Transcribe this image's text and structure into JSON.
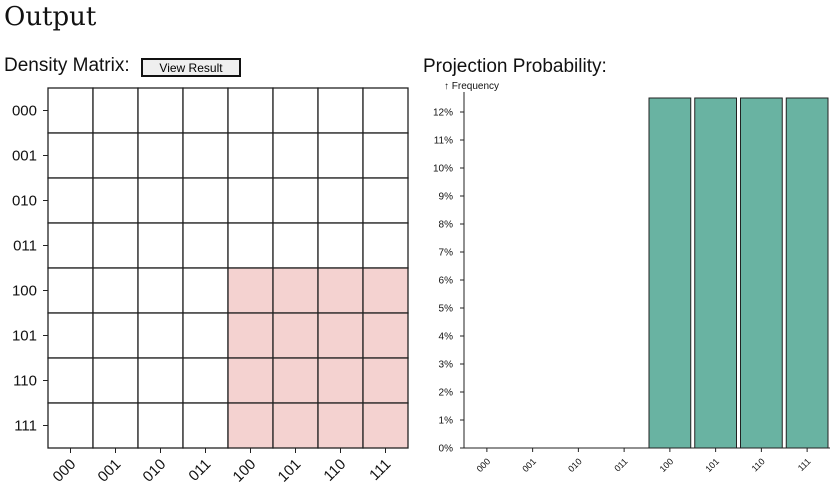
{
  "page": {
    "title": "Output"
  },
  "density_matrix": {
    "label": "Density Matrix:",
    "button_label": "View Result",
    "row_labels": [
      "000",
      "001",
      "010",
      "011",
      "100",
      "101",
      "110",
      "111"
    ],
    "col_labels": [
      "000",
      "001",
      "010",
      "011",
      "100",
      "101",
      "110",
      "111"
    ],
    "highlight_color": "#f4d2d0",
    "cells": [
      [
        0,
        0,
        0,
        0,
        0,
        0,
        0,
        0
      ],
      [
        0,
        0,
        0,
        0,
        0,
        0,
        0,
        0
      ],
      [
        0,
        0,
        0,
        0,
        0,
        0,
        0,
        0
      ],
      [
        0,
        0,
        0,
        0,
        0,
        0,
        0,
        0
      ],
      [
        0,
        0,
        0,
        0,
        1,
        1,
        1,
        1
      ],
      [
        0,
        0,
        0,
        0,
        1,
        1,
        1,
        1
      ],
      [
        0,
        0,
        0,
        0,
        1,
        1,
        1,
        1
      ],
      [
        0,
        0,
        0,
        0,
        1,
        1,
        1,
        1
      ]
    ]
  },
  "projection": {
    "label": "Projection Probability:"
  },
  "chart_data": {
    "type": "bar",
    "categories": [
      "000",
      "001",
      "010",
      "011",
      "100",
      "101",
      "110",
      "111"
    ],
    "values": [
      0,
      0,
      0,
      0,
      12.5,
      12.5,
      12.5,
      12.5
    ],
    "ylabel": "↑ Frequency",
    "yticks": [
      "0%",
      "1%",
      "2%",
      "3%",
      "4%",
      "5%",
      "6%",
      "7%",
      "8%",
      "9%",
      "10%",
      "11%",
      "12%"
    ],
    "ylim": [
      0,
      12.5
    ],
    "bar_color": "#69b3a2",
    "grid": false
  }
}
